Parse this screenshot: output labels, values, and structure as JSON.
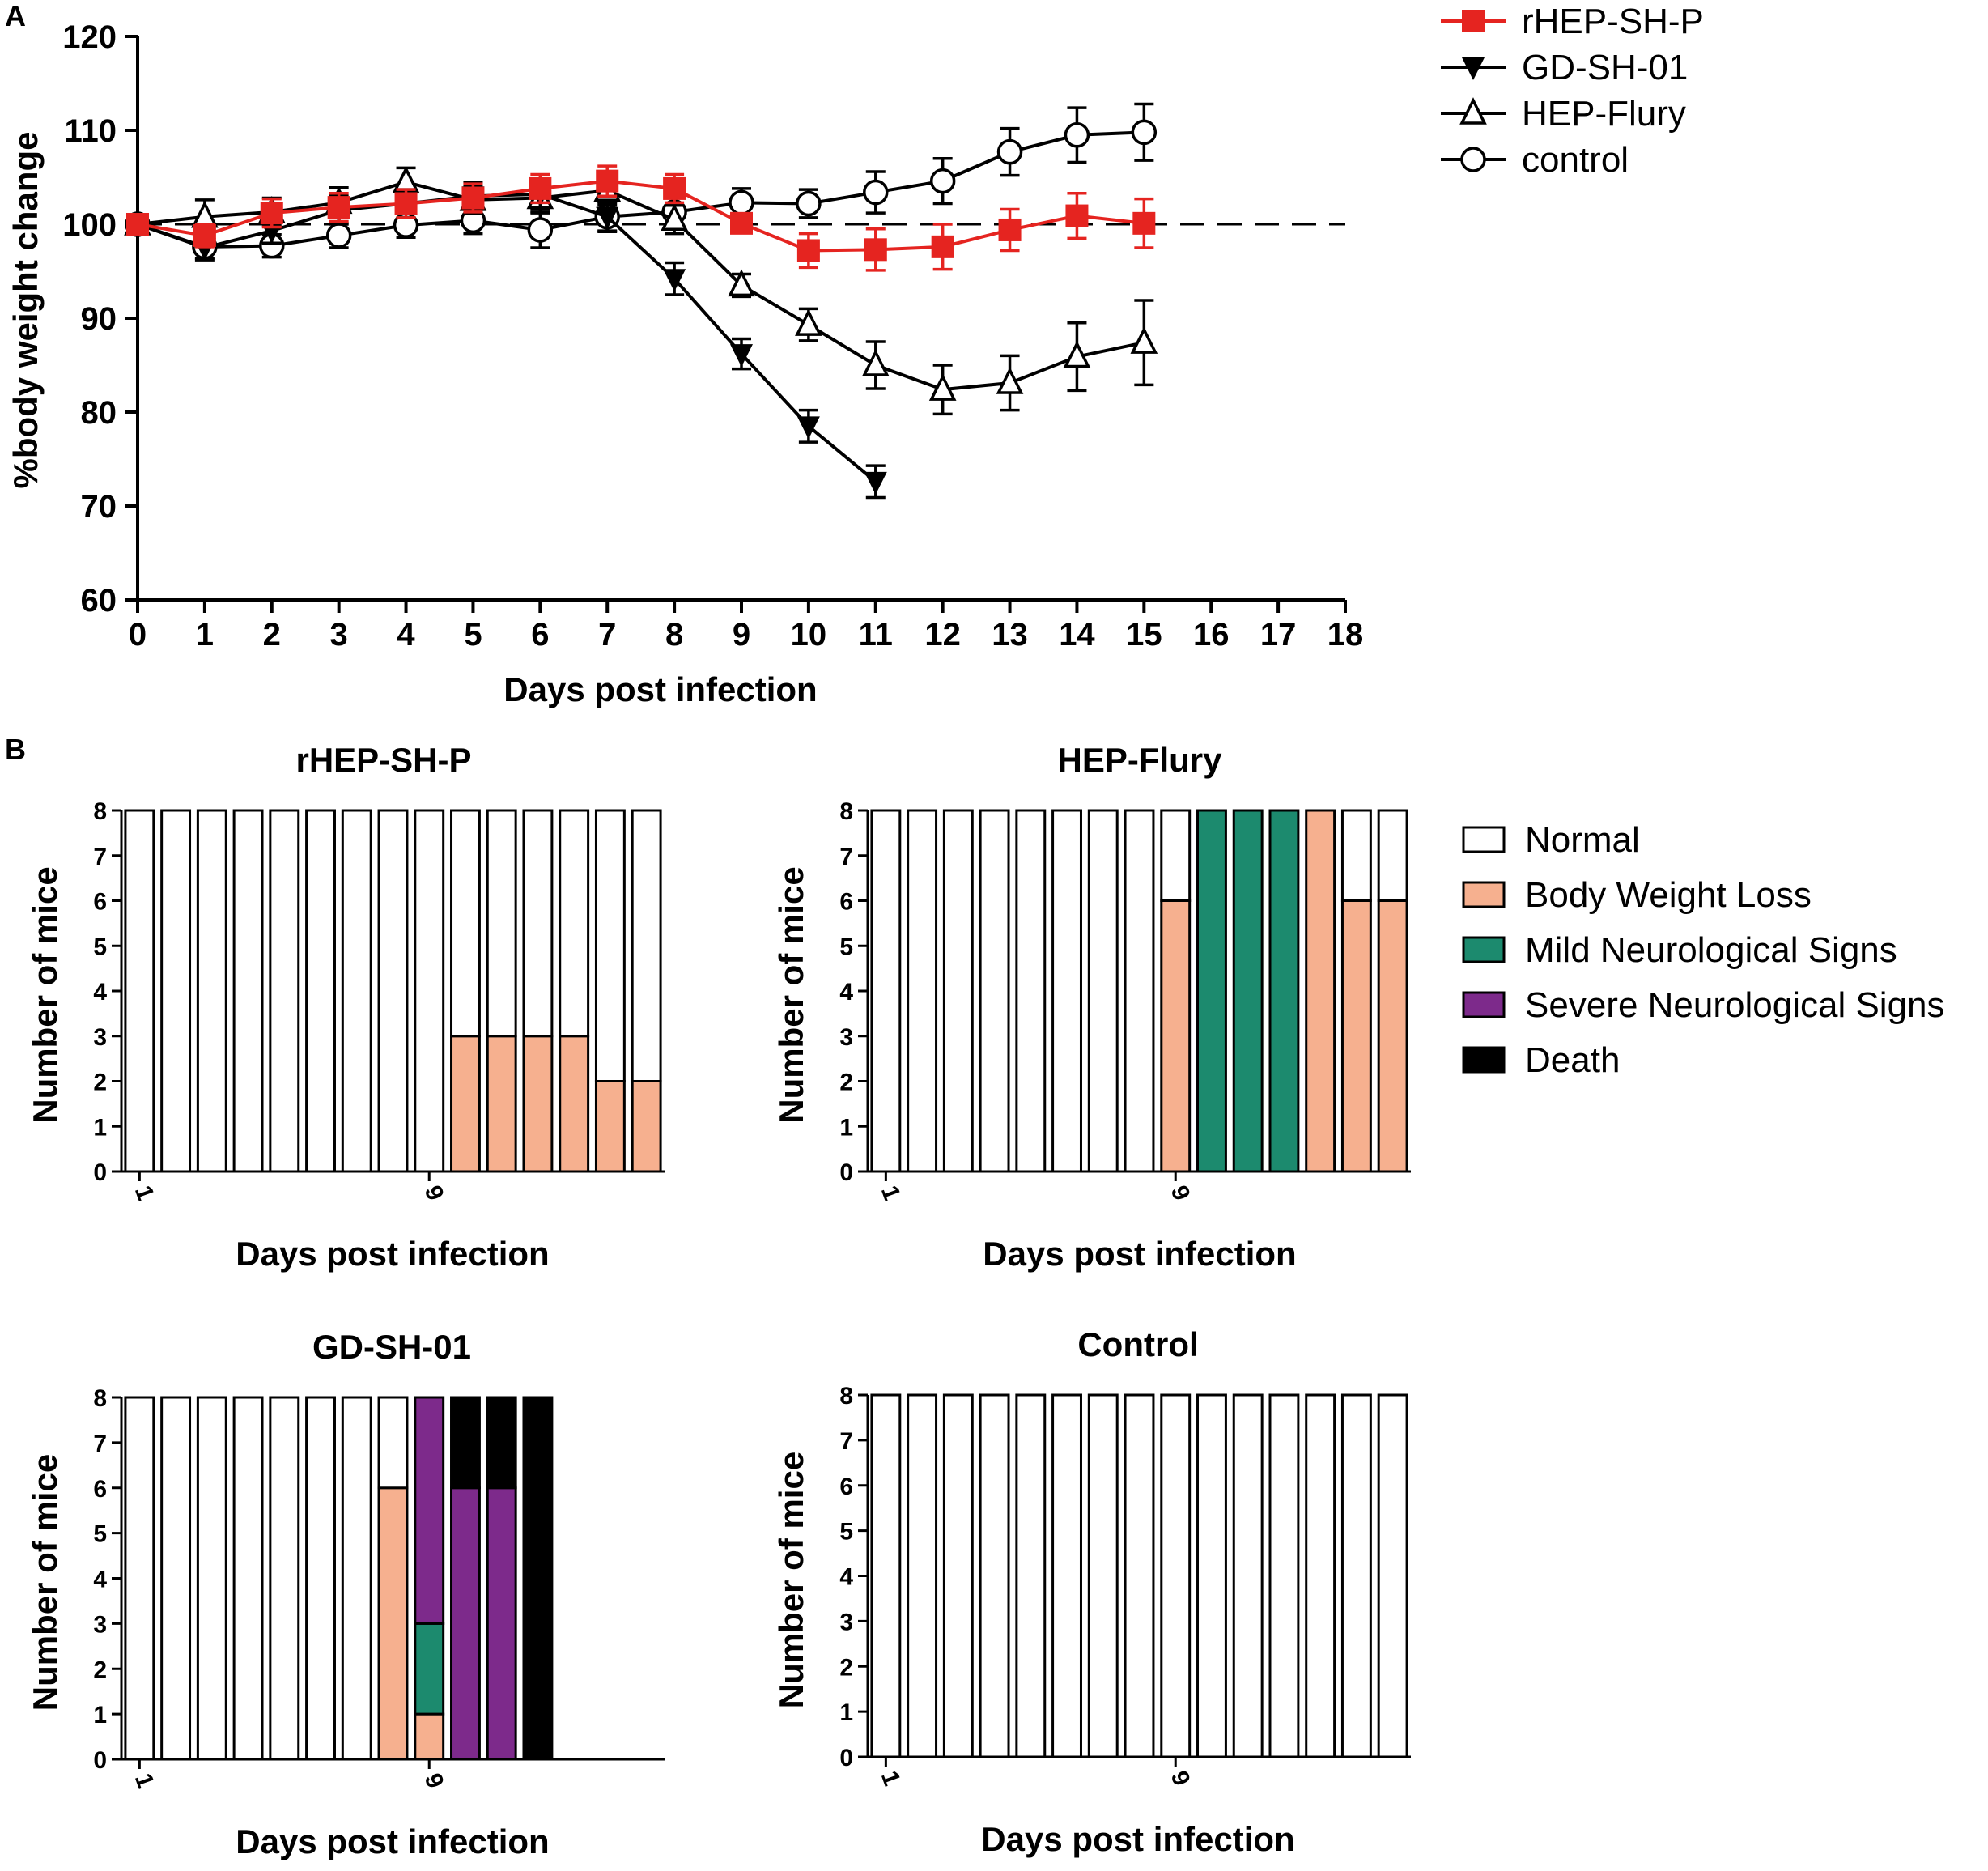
{
  "figure": {
    "panel_a_label": "A",
    "panel_b_label": "B",
    "colors": {
      "red": "#e52420",
      "black": "#000000",
      "normal": "#ffffff",
      "body_weight_loss": "#f6b08f",
      "mild": "#1c8a6e",
      "severe": "#7d2a8b",
      "death": "#000000"
    }
  },
  "chart_data": [
    {
      "id": "weight",
      "type": "line",
      "title": "",
      "xlabel": "Days post infection",
      "ylabel": "%body weight change",
      "xlim": [
        0,
        18
      ],
      "ylim": [
        60,
        120
      ],
      "xticks": [
        "0",
        "1",
        "2",
        "3",
        "4",
        "5",
        "6",
        "7",
        "8",
        "9",
        "10",
        "11",
        "12",
        "13",
        "14",
        "15",
        "16",
        "17",
        "18"
      ],
      "yticks": [
        "60",
        "70",
        "80",
        "90",
        "100",
        "110",
        "120"
      ],
      "reference_line": 100,
      "series": [
        {
          "name": "rHEP-SH-P",
          "color": "#e52420",
          "marker": "square",
          "x": [
            0,
            1,
            2,
            3,
            4,
            5,
            6,
            7,
            8,
            9,
            10,
            11,
            12,
            13,
            14,
            15
          ],
          "y": [
            100,
            98.8,
            101.2,
            101.8,
            102.2,
            102.8,
            103.8,
            104.6,
            103.8,
            100.1,
            97.2,
            97.3,
            97.6,
            99.4,
            100.9,
            100.1
          ],
          "err": [
            0.4,
            1.2,
            1.5,
            1.5,
            1.5,
            1.5,
            1.5,
            1.6,
            1.5,
            1,
            1.8,
            2.2,
            2.4,
            2.2,
            2.4,
            2.6
          ]
        },
        {
          "name": "GD-SH-01",
          "color": "#000000",
          "marker": "triangle-down",
          "x": [
            0,
            1,
            2,
            3,
            4,
            5,
            6,
            7,
            8,
            9,
            10,
            11
          ],
          "y": [
            100,
            97.5,
            99.3,
            101.5,
            102.2,
            103,
            103.2,
            100.8,
            94.2,
            86.2,
            78.5,
            72.6
          ],
          "err": [
            0.4,
            1.3,
            1.3,
            1.5,
            1.5,
            1.5,
            1.6,
            1.6,
            1.7,
            1.6,
            1.7,
            1.7
          ]
        },
        {
          "name": "HEP-Flury",
          "color": "#000000",
          "marker": "triangle-up",
          "x": [
            0,
            1,
            2,
            3,
            4,
            5,
            6,
            7,
            8,
            9,
            10,
            11,
            12,
            13,
            14,
            15
          ],
          "y": [
            100,
            100.8,
            101.3,
            102.3,
            104.5,
            102.6,
            102.8,
            103.6,
            100.5,
            93.5,
            89.3,
            85,
            82.4,
            83.1,
            85.9,
            87.4
          ],
          "err": [
            0.4,
            1.8,
            1.5,
            1.6,
            1.5,
            1.5,
            1.6,
            1.6,
            1.5,
            1.2,
            1.7,
            2.5,
            2.6,
            2.9,
            3.6,
            4.5
          ]
        },
        {
          "name": "control",
          "color": "#000000",
          "marker": "circle-open",
          "x": [
            0,
            1,
            2,
            3,
            4,
            5,
            6,
            7,
            8,
            9,
            10,
            11,
            12,
            13,
            14,
            15
          ],
          "y": [
            100,
            97.6,
            97.7,
            98.8,
            99.9,
            100.4,
            99.4,
            100.8,
            101.3,
            102.3,
            102.2,
            103.4,
            104.6,
            107.7,
            109.5,
            109.8
          ],
          "err": [
            0.4,
            1.2,
            1.2,
            1.3,
            1.3,
            1.4,
            1.9,
            1.5,
            1.5,
            1.5,
            1.5,
            2.2,
            2.4,
            2.5,
            2.9,
            3
          ]
        }
      ]
    },
    {
      "id": "rhep",
      "type": "bar",
      "stacked": true,
      "title": "rHEP-SH-P",
      "xlabel": "Days post infection",
      "ylabel": "Number of mice",
      "ylim": [
        0,
        8
      ],
      "yticks": [
        "0",
        "1",
        "2",
        "3",
        "4",
        "5",
        "6",
        "7",
        "8"
      ],
      "xtick_labels": [
        "1",
        "9"
      ],
      "xtick_positions": [
        0,
        8
      ],
      "categories": [
        "1",
        "2",
        "3",
        "4",
        "5",
        "6",
        "7",
        "8",
        "9",
        "10",
        "11",
        "12",
        "13",
        "14",
        "15"
      ],
      "series": [
        {
          "name": "Body Weight Loss",
          "values": [
            0,
            0,
            0,
            0,
            0,
            0,
            0,
            0,
            0,
            3,
            3,
            3,
            3,
            2,
            2
          ]
        },
        {
          "name": "Mild Neurological Signs",
          "values": [
            0,
            0,
            0,
            0,
            0,
            0,
            0,
            0,
            0,
            0,
            0,
            0,
            0,
            0,
            0
          ]
        },
        {
          "name": "Severe Neurological Signs",
          "values": [
            0,
            0,
            0,
            0,
            0,
            0,
            0,
            0,
            0,
            0,
            0,
            0,
            0,
            0,
            0
          ]
        },
        {
          "name": "Death",
          "values": [
            0,
            0,
            0,
            0,
            0,
            0,
            0,
            0,
            0,
            0,
            0,
            0,
            0,
            0,
            0
          ]
        },
        {
          "name": "Normal",
          "values": [
            8,
            8,
            8,
            8,
            8,
            8,
            8,
            8,
            8,
            5,
            5,
            5,
            5,
            6,
            6
          ]
        }
      ]
    },
    {
      "id": "flury",
      "type": "bar",
      "stacked": true,
      "title": "HEP-Flury",
      "xlabel": "Days post infection",
      "ylabel": "Number of mice",
      "ylim": [
        0,
        8
      ],
      "yticks": [
        "0",
        "1",
        "2",
        "3",
        "4",
        "5",
        "6",
        "7",
        "8"
      ],
      "xtick_labels": [
        "1",
        "9"
      ],
      "xtick_positions": [
        0,
        8
      ],
      "categories": [
        "1",
        "2",
        "3",
        "4",
        "5",
        "6",
        "7",
        "8",
        "9",
        "10",
        "11",
        "12",
        "13",
        "14",
        "15"
      ],
      "series": [
        {
          "name": "Body Weight Loss",
          "values": [
            0,
            0,
            0,
            0,
            0,
            0,
            0,
            0,
            6,
            0,
            0,
            0,
            8,
            6,
            6
          ]
        },
        {
          "name": "Mild Neurological Signs",
          "values": [
            0,
            0,
            0,
            0,
            0,
            0,
            0,
            0,
            0,
            8,
            8,
            8,
            0,
            0,
            0
          ]
        },
        {
          "name": "Severe Neurological Signs",
          "values": [
            0,
            0,
            0,
            0,
            0,
            0,
            0,
            0,
            0,
            0,
            0,
            0,
            0,
            0,
            0
          ]
        },
        {
          "name": "Death",
          "values": [
            0,
            0,
            0,
            0,
            0,
            0,
            0,
            0,
            0,
            0,
            0,
            0,
            0,
            0,
            0
          ]
        },
        {
          "name": "Normal",
          "values": [
            8,
            8,
            8,
            8,
            8,
            8,
            8,
            8,
            2,
            0,
            0,
            0,
            0,
            2,
            2
          ]
        }
      ]
    },
    {
      "id": "gdsh",
      "type": "bar",
      "stacked": true,
      "title": "GD-SH-01",
      "xlabel": "Days post infection",
      "ylabel": "Number of mice",
      "ylim": [
        0,
        8
      ],
      "yticks": [
        "0",
        "1",
        "2",
        "3",
        "4",
        "5",
        "6",
        "7",
        "8"
      ],
      "xtick_labels": [
        "1",
        "9"
      ],
      "xtick_positions": [
        0,
        8
      ],
      "categories": [
        "1",
        "2",
        "3",
        "4",
        "5",
        "6",
        "7",
        "8",
        "9",
        "10",
        "11",
        "12",
        "13",
        "14",
        "15"
      ],
      "series": [
        {
          "name": "Body Weight Loss",
          "values": [
            0,
            0,
            0,
            0,
            0,
            0,
            0,
            6,
            1,
            0,
            0,
            0,
            0,
            0,
            0
          ]
        },
        {
          "name": "Mild Neurological Signs",
          "values": [
            0,
            0,
            0,
            0,
            0,
            0,
            0,
            0,
            2,
            0,
            0,
            0,
            0,
            0,
            0
          ]
        },
        {
          "name": "Severe Neurological Signs",
          "values": [
            0,
            0,
            0,
            0,
            0,
            0,
            0,
            0,
            5,
            6,
            6,
            0,
            0,
            0,
            0
          ]
        },
        {
          "name": "Death",
          "values": [
            0,
            0,
            0,
            0,
            0,
            0,
            0,
            0,
            0,
            2,
            2,
            8,
            0,
            0,
            0
          ]
        },
        {
          "name": "Normal",
          "values": [
            8,
            8,
            8,
            8,
            8,
            8,
            8,
            2,
            0,
            0,
            0,
            0,
            0,
            0,
            0
          ]
        }
      ]
    },
    {
      "id": "ctrl",
      "type": "bar",
      "stacked": true,
      "title": "Control",
      "xlabel": "Days post infection",
      "ylabel": "Number of mice",
      "ylim": [
        0,
        8
      ],
      "yticks": [
        "0",
        "1",
        "2",
        "3",
        "4",
        "5",
        "6",
        "7",
        "8"
      ],
      "xtick_labels": [
        "1",
        "9"
      ],
      "xtick_positions": [
        0,
        8
      ],
      "categories": [
        "1",
        "2",
        "3",
        "4",
        "5",
        "6",
        "7",
        "8",
        "9",
        "10",
        "11",
        "12",
        "13",
        "14",
        "15"
      ],
      "series": [
        {
          "name": "Body Weight Loss",
          "values": [
            0,
            0,
            0,
            0,
            0,
            0,
            0,
            0,
            0,
            0,
            0,
            0,
            0,
            0,
            0
          ]
        },
        {
          "name": "Mild Neurological Signs",
          "values": [
            0,
            0,
            0,
            0,
            0,
            0,
            0,
            0,
            0,
            0,
            0,
            0,
            0,
            0,
            0
          ]
        },
        {
          "name": "Severe Neurological Signs",
          "values": [
            0,
            0,
            0,
            0,
            0,
            0,
            0,
            0,
            0,
            0,
            0,
            0,
            0,
            0,
            0
          ]
        },
        {
          "name": "Death",
          "values": [
            0,
            0,
            0,
            0,
            0,
            0,
            0,
            0,
            0,
            0,
            0,
            0,
            0,
            0,
            0
          ]
        },
        {
          "name": "Normal",
          "values": [
            8,
            8,
            8,
            8,
            8,
            8,
            8,
            8,
            8,
            8,
            8,
            8,
            8,
            8,
            8
          ]
        }
      ]
    }
  ],
  "legend_a": [
    {
      "label": "rHEP-SH-P",
      "marker": "square",
      "color": "#e52420"
    },
    {
      "label": "GD-SH-01",
      "marker": "triangle-down",
      "color": "#000000"
    },
    {
      "label": "HEP-Flury",
      "marker": "triangle-up",
      "color": "#000000"
    },
    {
      "label": "control",
      "marker": "circle-open",
      "color": "#000000"
    }
  ],
  "legend_b": [
    {
      "label": "Normal",
      "color": "#ffffff"
    },
    {
      "label": "Body Weight Loss",
      "color": "#f6b08f"
    },
    {
      "label": "Mild Neurological Signs",
      "color": "#1c8a6e"
    },
    {
      "label": "Severe Neurological Signs",
      "color": "#7d2a8b"
    },
    {
      "label": "Death",
      "color": "#000000"
    }
  ]
}
